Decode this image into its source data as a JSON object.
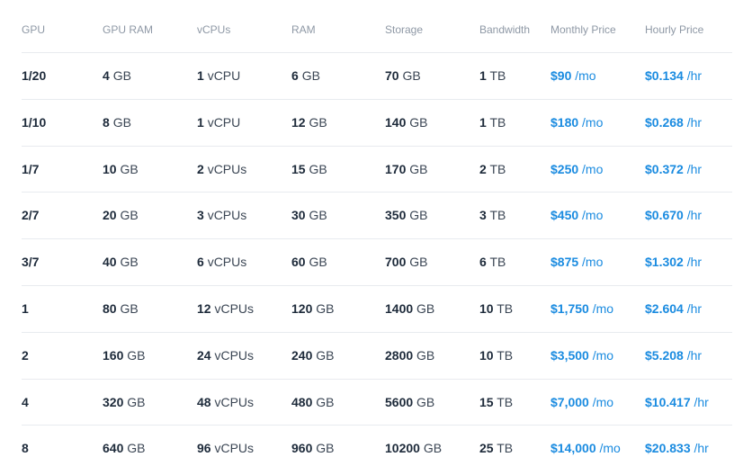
{
  "columns": {
    "gpu": "GPU",
    "gpu_ram": "GPU RAM",
    "vcpus": "vCPUs",
    "ram": "RAM",
    "storage": "Storage",
    "bandwidth": "Bandwidth",
    "monthly_price": "Monthly Price",
    "hourly_price": "Hourly Price"
  },
  "colors": {
    "price_accent": "#1a8be0",
    "header_text": "#8e98a5",
    "body_text": "#1d2a3a",
    "divider": "#e8ebef"
  },
  "rows": [
    {
      "gpu": "1/20",
      "gpu_ram": {
        "v": "4",
        "u": "GB"
      },
      "vcpus": {
        "v": "1",
        "u": "vCPU"
      },
      "ram": {
        "v": "6",
        "u": "GB"
      },
      "storage": {
        "v": "70",
        "u": "GB"
      },
      "bandwidth": {
        "v": "1",
        "u": "TB"
      },
      "monthly": {
        "v": "$90",
        "u": "/mo"
      },
      "hourly": {
        "v": "$0.134",
        "u": "/hr"
      }
    },
    {
      "gpu": "1/10",
      "gpu_ram": {
        "v": "8",
        "u": "GB"
      },
      "vcpus": {
        "v": "1",
        "u": "vCPU"
      },
      "ram": {
        "v": "12",
        "u": "GB"
      },
      "storage": {
        "v": "140",
        "u": "GB"
      },
      "bandwidth": {
        "v": "1",
        "u": "TB"
      },
      "monthly": {
        "v": "$180",
        "u": "/mo"
      },
      "hourly": {
        "v": "$0.268",
        "u": "/hr"
      }
    },
    {
      "gpu": "1/7",
      "gpu_ram": {
        "v": "10",
        "u": "GB"
      },
      "vcpus": {
        "v": "2",
        "u": "vCPUs"
      },
      "ram": {
        "v": "15",
        "u": "GB"
      },
      "storage": {
        "v": "170",
        "u": "GB"
      },
      "bandwidth": {
        "v": "2",
        "u": "TB"
      },
      "monthly": {
        "v": "$250",
        "u": "/mo"
      },
      "hourly": {
        "v": "$0.372",
        "u": "/hr"
      }
    },
    {
      "gpu": "2/7",
      "gpu_ram": {
        "v": "20",
        "u": "GB"
      },
      "vcpus": {
        "v": "3",
        "u": "vCPUs"
      },
      "ram": {
        "v": "30",
        "u": "GB"
      },
      "storage": {
        "v": "350",
        "u": "GB"
      },
      "bandwidth": {
        "v": "3",
        "u": "TB"
      },
      "monthly": {
        "v": "$450",
        "u": "/mo"
      },
      "hourly": {
        "v": "$0.670",
        "u": "/hr"
      }
    },
    {
      "gpu": "3/7",
      "gpu_ram": {
        "v": "40",
        "u": "GB"
      },
      "vcpus": {
        "v": "6",
        "u": "vCPUs"
      },
      "ram": {
        "v": "60",
        "u": "GB"
      },
      "storage": {
        "v": "700",
        "u": "GB"
      },
      "bandwidth": {
        "v": "6",
        "u": "TB"
      },
      "monthly": {
        "v": "$875",
        "u": "/mo"
      },
      "hourly": {
        "v": "$1.302",
        "u": "/hr"
      }
    },
    {
      "gpu": "1",
      "gpu_ram": {
        "v": "80",
        "u": "GB"
      },
      "vcpus": {
        "v": "12",
        "u": "vCPUs"
      },
      "ram": {
        "v": "120",
        "u": "GB"
      },
      "storage": {
        "v": "1400",
        "u": "GB"
      },
      "bandwidth": {
        "v": "10",
        "u": "TB"
      },
      "monthly": {
        "v": "$1,750",
        "u": "/mo"
      },
      "hourly": {
        "v": "$2.604",
        "u": "/hr"
      }
    },
    {
      "gpu": "2",
      "gpu_ram": {
        "v": "160",
        "u": "GB"
      },
      "vcpus": {
        "v": "24",
        "u": "vCPUs"
      },
      "ram": {
        "v": "240",
        "u": "GB"
      },
      "storage": {
        "v": "2800",
        "u": "GB"
      },
      "bandwidth": {
        "v": "10",
        "u": "TB"
      },
      "monthly": {
        "v": "$3,500",
        "u": "/mo"
      },
      "hourly": {
        "v": "$5.208",
        "u": "/hr"
      }
    },
    {
      "gpu": "4",
      "gpu_ram": {
        "v": "320",
        "u": "GB"
      },
      "vcpus": {
        "v": "48",
        "u": "vCPUs"
      },
      "ram": {
        "v": "480",
        "u": "GB"
      },
      "storage": {
        "v": "5600",
        "u": "GB"
      },
      "bandwidth": {
        "v": "15",
        "u": "TB"
      },
      "monthly": {
        "v": "$7,000",
        "u": "/mo"
      },
      "hourly": {
        "v": "$10.417",
        "u": "/hr"
      }
    },
    {
      "gpu": "8",
      "gpu_ram": {
        "v": "640",
        "u": "GB"
      },
      "vcpus": {
        "v": "96",
        "u": "vCPUs"
      },
      "ram": {
        "v": "960",
        "u": "GB"
      },
      "storage": {
        "v": "10200",
        "u": "GB"
      },
      "bandwidth": {
        "v": "25",
        "u": "TB"
      },
      "monthly": {
        "v": "$14,000",
        "u": "/mo"
      },
      "hourly": {
        "v": "$20.833",
        "u": "/hr"
      }
    }
  ]
}
